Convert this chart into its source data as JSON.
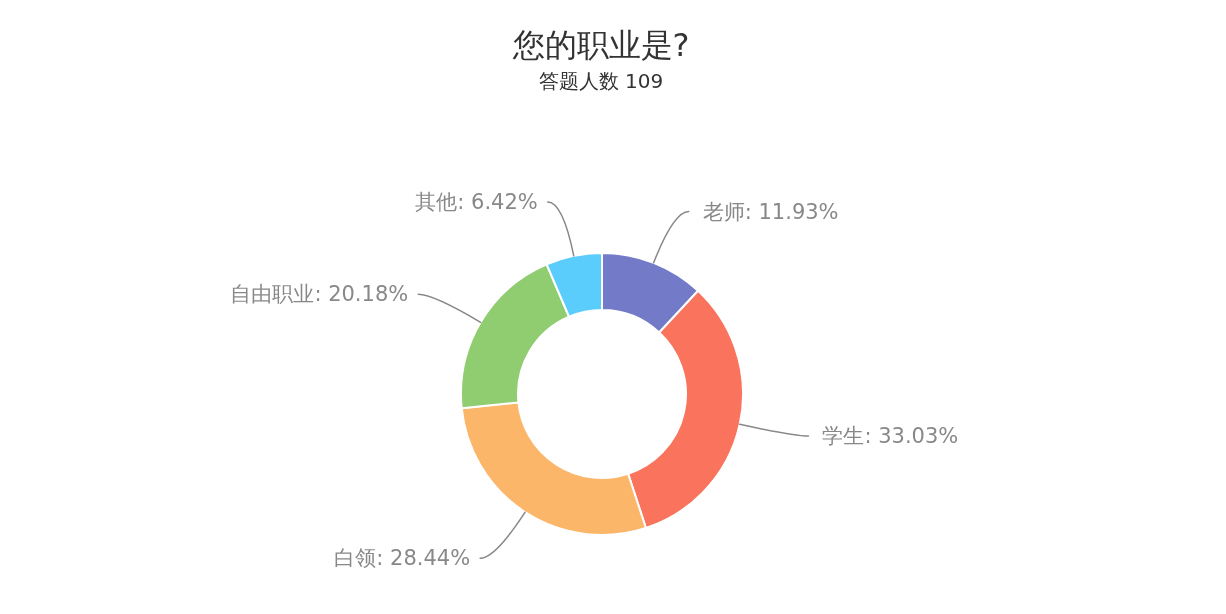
{
  "chart_data": {
    "type": "donut",
    "title": "您的职业是?",
    "subtitle": "答题人数 109",
    "categories": [
      "老师",
      "学生",
      "白领",
      "自由职业",
      "其他"
    ],
    "values": [
      11.93,
      33.03,
      28.44,
      20.18,
      6.42
    ],
    "colors": [
      "#737bc9",
      "#f9735d",
      "#fcb66a",
      "#8fcd70",
      "#5bcdfd"
    ],
    "value_labels": [
      ": 11.93%",
      ": 33.03%",
      ": 28.44%",
      ": 20.18%",
      ": 6.42%"
    ]
  }
}
